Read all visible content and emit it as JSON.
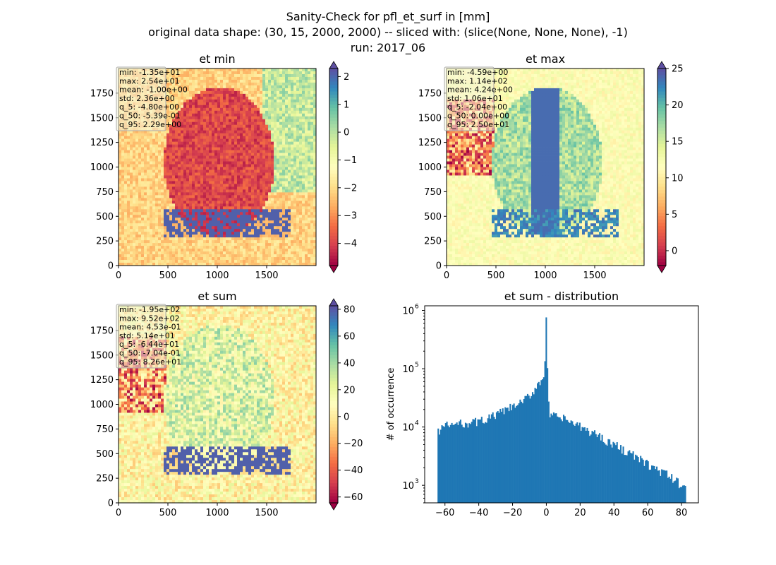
{
  "figure": {
    "title_lines": [
      "Sanity-Check for pfl_et_surf in [mm]",
      "original data shape: (30, 15, 2000, 2000) -- sliced with: (slice(None, None, None), -1)",
      "run: 2017_06"
    ]
  },
  "colormap": {
    "name": "Spectral",
    "stops": [
      "#9e0142",
      "#d53e4f",
      "#f46d43",
      "#fdae61",
      "#fee08b",
      "#ffffbf",
      "#e6f598",
      "#abdda4",
      "#66c2a5",
      "#3288bd",
      "#5e4fa2"
    ]
  },
  "chart_data": [
    {
      "type": "heatmap",
      "title": "et min",
      "xlabel": "",
      "ylabel": "",
      "xlim": [
        0,
        2000
      ],
      "ylim": [
        0,
        2000
      ],
      "x_ticks": [
        0,
        500,
        1000,
        1500
      ],
      "y_ticks": [
        0,
        250,
        500,
        750,
        1000,
        1250,
        1500,
        1750
      ],
      "colorbar": {
        "vmin": -4.8,
        "vmax": 2.29,
        "ticks": [
          2,
          1,
          0,
          -1,
          -2,
          -3,
          -4
        ],
        "extend": "both"
      },
      "stats": [
        "min: -1.35e+01",
        "max: 2.54e+01",
        "mean: -1.00e+00",
        "std: 2.36e+00",
        "q_5: -4.80e+00",
        "q_50: -5.39e-01",
        "q_95: 2.29e+00"
      ]
    },
    {
      "type": "heatmap",
      "title": "et max",
      "xlabel": "",
      "ylabel": "",
      "xlim": [
        0,
        2000
      ],
      "ylim": [
        0,
        2000
      ],
      "x_ticks": [
        0,
        500,
        1000,
        1500
      ],
      "y_ticks": [
        0,
        250,
        500,
        750,
        1000,
        1250,
        1500,
        1750
      ],
      "colorbar": {
        "vmin": -2.04,
        "vmax": 25.0,
        "ticks": [
          25,
          20,
          15,
          10,
          5,
          0
        ],
        "extend": "both"
      },
      "stats": [
        "min: -4.59e+00",
        "max: 1.14e+02",
        "mean: 4.24e+00",
        "std: 1.06e+01",
        "q_5: -2.04e+00",
        "q_50: 0.00e+00",
        "q_95: 2.50e+01"
      ]
    },
    {
      "type": "heatmap",
      "title": "et sum",
      "xlabel": "",
      "ylabel": "",
      "xlim": [
        0,
        2000
      ],
      "ylim": [
        0,
        2000
      ],
      "x_ticks": [
        0,
        500,
        1000,
        1500
      ],
      "y_ticks": [
        0,
        250,
        500,
        750,
        1000,
        1250,
        1500,
        1750
      ],
      "colorbar": {
        "vmin": -64.4,
        "vmax": 82.6,
        "ticks": [
          80,
          60,
          40,
          20,
          0,
          -20,
          -40,
          -60
        ],
        "extend": "both"
      },
      "stats": [
        "min: -1.95e+02",
        "max: 9.52e+02",
        "mean: 4.53e-01",
        "std: 5.14e+01",
        "q_5: -6.44e+01",
        "q_50: -7.04e-01",
        "q_95: 8.26e+01"
      ]
    },
    {
      "type": "bar",
      "title": "et sum - distribution",
      "xlabel": "",
      "ylabel": "# of occurrence",
      "xlim": [
        -72,
        90
      ],
      "ylim": [
        500,
        1200000
      ],
      "yscale": "log",
      "color": "#1f77b4",
      "x_ticks": [
        -60,
        -40,
        -20,
        0,
        20,
        40,
        60,
        80
      ],
      "y_tick_labels": [
        "10",
        "10",
        "10",
        "10"
      ],
      "y_tick_exponents": [
        "3",
        "4",
        "5",
        "6"
      ],
      "y_tick_values": [
        1000,
        10000,
        100000,
        1000000
      ],
      "bin_range": [
        -64.4,
        82.6
      ],
      "anchors": [
        [
          -64.4,
          8000
        ],
        [
          -62,
          10000
        ],
        [
          -60,
          10500
        ],
        [
          -55,
          11000
        ],
        [
          -50,
          11500
        ],
        [
          -45,
          12000
        ],
        [
          -40,
          12500
        ],
        [
          -35,
          14000
        ],
        [
          -30,
          16000
        ],
        [
          -25,
          19000
        ],
        [
          -20,
          22000
        ],
        [
          -15,
          26000
        ],
        [
          -10,
          34000
        ],
        [
          -8,
          40000
        ],
        [
          -6,
          50000
        ],
        [
          -4,
          60000
        ],
        [
          -2,
          70000
        ],
        [
          -1,
          90000
        ],
        [
          -0.5,
          400000
        ],
        [
          0,
          850000
        ],
        [
          0.5,
          150000
        ],
        [
          1,
          30000
        ],
        [
          2,
          16000
        ],
        [
          5,
          15000
        ],
        [
          10,
          14000
        ],
        [
          15,
          12000
        ],
        [
          20,
          10000
        ],
        [
          25,
          8500
        ],
        [
          30,
          7500
        ],
        [
          35,
          6000
        ],
        [
          40,
          5000
        ],
        [
          45,
          4200
        ],
        [
          50,
          3500
        ],
        [
          55,
          2800
        ],
        [
          60,
          2300
        ],
        [
          65,
          1900
        ],
        [
          70,
          1600
        ],
        [
          75,
          1300
        ],
        [
          80,
          1000
        ],
        [
          82.6,
          1000
        ]
      ]
    }
  ]
}
